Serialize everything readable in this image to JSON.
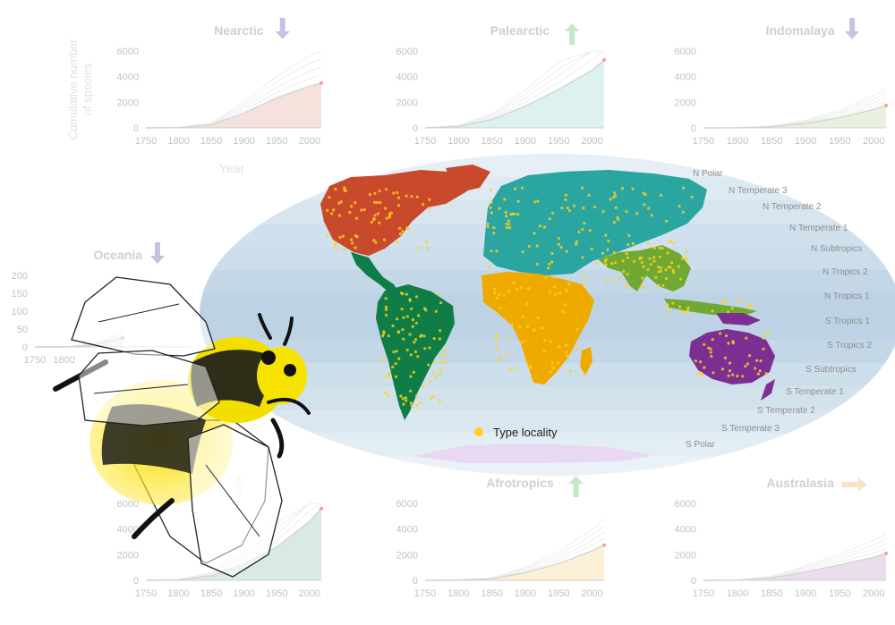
{
  "colors": {
    "Nearctic": "#c8492c",
    "Palearctic": "#2aa5a0",
    "Indomalaya": "#6fa832",
    "Neotropics": "#0f7d45",
    "Afrotropics": "#efaa00",
    "Australasia": "#7c2f92",
    "Oceania": "#8f7cc0",
    "type_locality": "#ffd21a",
    "ocean": "#c6d9e8",
    "arrow_down": "#c7c2e2",
    "arrow_up": "#c3e8c8",
    "arrow_flat": "#f7e2c3"
  },
  "top_panels_ylabel": "Cumulative number\nof species",
  "top_panels_xlabel": "Year",
  "legend": {
    "label": "Type locality"
  },
  "latitude_bands": [
    "N Polar",
    "N Temperate 3",
    "N Temperate 2",
    "N Temperate 1",
    "N Subtropics",
    "N Tropics 2",
    "N Tropics 1",
    "S Tropics 1",
    "S Tropics 2",
    "S Subtropics",
    "S Temperate 1",
    "S Temperate 2",
    "S Temperate 3",
    "S Polar"
  ],
  "chart_data": [
    {
      "type": "area",
      "region": "Nearctic",
      "title": "Nearctic",
      "trend": "down",
      "x": [
        1750,
        1800,
        1850,
        1900,
        1950,
        2000,
        2018
      ],
      "y": [
        0,
        20,
        230,
        1150,
        2350,
        3250,
        3500
      ],
      "xlim": [
        1750,
        2018
      ],
      "ylim": [
        0,
        6000
      ],
      "xticks": [
        "1750",
        "1800",
        "1850",
        "1900",
        "1950",
        "2000"
      ],
      "yticks": [
        "0",
        "2000",
        "4000",
        "6000"
      ]
    },
    {
      "type": "area",
      "region": "Palearctic",
      "title": "Palearctic",
      "trend": "up",
      "x": [
        1750,
        1800,
        1850,
        1900,
        1950,
        2000,
        2018
      ],
      "y": [
        0,
        110,
        650,
        1700,
        3000,
        4500,
        5300
      ],
      "xlim": [
        1750,
        2018
      ],
      "ylim": [
        0,
        6000
      ],
      "xticks": [
        "1750",
        "1800",
        "1850",
        "1900",
        "1950",
        "2000"
      ],
      "yticks": [
        "0",
        "2000",
        "4000",
        "6000"
      ]
    },
    {
      "type": "area",
      "region": "Indomalaya",
      "title": "Indomalaya",
      "trend": "down",
      "x": [
        1750,
        1800,
        1850,
        1900,
        1950,
        2000,
        2018
      ],
      "y": [
        0,
        5,
        90,
        350,
        800,
        1450,
        1750
      ],
      "xlim": [
        1750,
        2018
      ],
      "ylim": [
        0,
        6000
      ],
      "xticks": [
        "1750",
        "1800",
        "1850",
        "1900",
        "1950",
        "2000"
      ],
      "yticks": [
        "0",
        "2000",
        "4000",
        "6000"
      ]
    },
    {
      "type": "area",
      "region": "Oceania",
      "title": "Oceania",
      "trend": "down",
      "x": [
        1750,
        1800,
        1850,
        1900
      ],
      "y": [
        0,
        0,
        5,
        25
      ],
      "xlim": [
        1750,
        2018
      ],
      "ylim": [
        0,
        200
      ],
      "xticks": [
        "1750",
        "1800"
      ],
      "yticks": [
        "0",
        "50",
        "100",
        "150",
        "200"
      ]
    },
    {
      "type": "area",
      "region": "Neotropics",
      "title": "",
      "trend": "up",
      "x": [
        1750,
        1800,
        1850,
        1900,
        1950,
        2000,
        2018
      ],
      "y": [
        0,
        30,
        350,
        1300,
        2600,
        4600,
        5600
      ],
      "xlim": [
        1750,
        2018
      ],
      "ylim": [
        0,
        6000
      ],
      "xticks": [
        "1750",
        "1800",
        "1850",
        "1900",
        "1950",
        "2000"
      ],
      "yticks": [
        "0",
        "2000",
        "4000",
        "6000"
      ]
    },
    {
      "type": "area",
      "region": "Afrotropics",
      "title": "Afrotropics",
      "trend": "up",
      "x": [
        1750,
        1800,
        1850,
        1900,
        1950,
        2000,
        2018
      ],
      "y": [
        0,
        10,
        120,
        600,
        1300,
        2300,
        2750
      ],
      "xlim": [
        1750,
        2018
      ],
      "ylim": [
        0,
        6000
      ],
      "xticks": [
        "1750",
        "1800",
        "1850",
        "1900",
        "1950",
        "2000"
      ],
      "yticks": [
        "0",
        "2000",
        "4000",
        "6000"
      ]
    },
    {
      "type": "area",
      "region": "Australasia",
      "title": "Australasia",
      "trend": "flat",
      "x": [
        1750,
        1800,
        1850,
        1900,
        1950,
        2000,
        2018
      ],
      "y": [
        0,
        10,
        180,
        650,
        1200,
        1800,
        2100
      ],
      "xlim": [
        1750,
        2018
      ],
      "ylim": [
        0,
        6000
      ],
      "xticks": [
        "1750",
        "1800",
        "1850",
        "1900",
        "1950",
        "2000"
      ],
      "yticks": [
        "0",
        "2000",
        "4000",
        "6000"
      ]
    }
  ]
}
